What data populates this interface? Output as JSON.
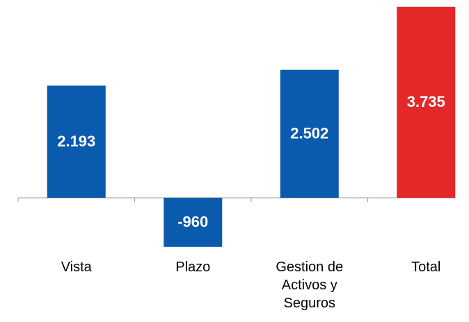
{
  "chart_data": {
    "type": "bar",
    "categories": [
      "Vista",
      "Plazo",
      "Gestion de Activos y Seguros",
      "Total"
    ],
    "values": [
      2193,
      -960,
      2502,
      3735
    ],
    "value_labels": [
      "2.193",
      "-960",
      "2.502",
      "3.735"
    ],
    "colors": [
      "#0a5aad",
      "#0a5aad",
      "#0a5aad",
      "#e3282a"
    ],
    "ylim": [
      -1000,
      3800
    ]
  }
}
